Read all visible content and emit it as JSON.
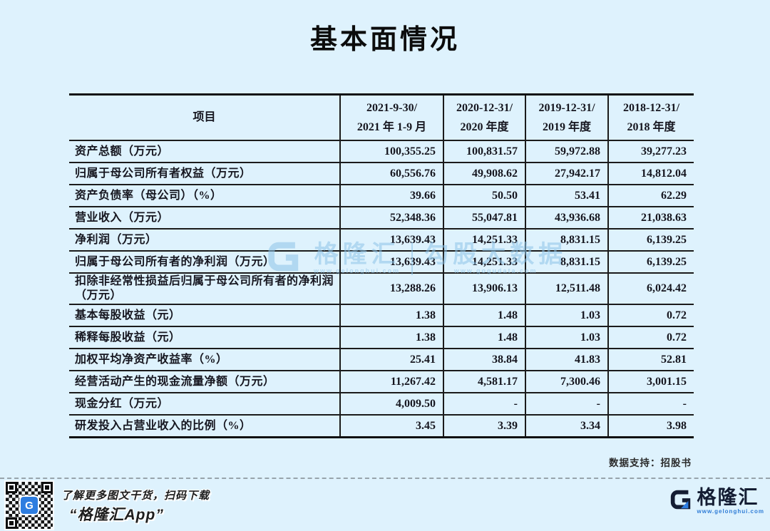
{
  "title": "基本面情况",
  "table": {
    "header": {
      "item_label": "项目",
      "periods": [
        {
          "line1": "2021-9-30/",
          "line2": "2021 年 1-9 月"
        },
        {
          "line1": "2020-12-31/",
          "line2": "2020 年度"
        },
        {
          "line1": "2019-12-31/",
          "line2": "2019 年度"
        },
        {
          "line1": "2018-12-31/",
          "line2": "2018 年度"
        }
      ]
    },
    "rows": [
      {
        "label": "资产总额（万元）",
        "values": [
          "100,355.25",
          "100,831.57",
          "59,972.88",
          "39,277.23"
        ]
      },
      {
        "label": "归属于母公司所有者权益（万元）",
        "values": [
          "60,556.76",
          "49,908.62",
          "27,942.17",
          "14,812.04"
        ]
      },
      {
        "label": "资产负债率（母公司）（%）",
        "values": [
          "39.66",
          "50.50",
          "53.41",
          "62.29"
        ]
      },
      {
        "label": "营业收入（万元）",
        "values": [
          "52,348.36",
          "55,047.81",
          "43,936.68",
          "21,038.63"
        ]
      },
      {
        "label": "净利润（万元）",
        "values": [
          "13,639.43",
          "14,251.33",
          "8,831.15",
          "6,139.25"
        ]
      },
      {
        "label": "归属于母公司所有者的净利润（万元）",
        "values": [
          "13,639.43",
          "14,251.33",
          "8,831.15",
          "6,139.25"
        ]
      },
      {
        "label": "扣除非经常性损益后归属于母公司所有者的净利润（万元）",
        "values": [
          "13,288.26",
          "13,906.13",
          "12,511.48",
          "6,024.42"
        ]
      },
      {
        "label": "基本每股收益（元）",
        "values": [
          "1.38",
          "1.48",
          "1.03",
          "0.72"
        ]
      },
      {
        "label": "稀释每股收益（元）",
        "values": [
          "1.38",
          "1.48",
          "1.03",
          "0.72"
        ]
      },
      {
        "label": "加权平均净资产收益率（%）",
        "values": [
          "25.41",
          "38.84",
          "41.83",
          "52.81"
        ]
      },
      {
        "label": "经营活动产生的现金流量净额（万元）",
        "values": [
          "11,267.42",
          "4,581.17",
          "7,300.46",
          "3,001.15"
        ]
      },
      {
        "label": "现金分红（万元）",
        "values": [
          "4,009.50",
          "-",
          "-",
          "-"
        ]
      },
      {
        "label": "研发投入占营业收入的比例（%）",
        "values": [
          "3.45",
          "3.39",
          "3.34",
          "3.98"
        ]
      }
    ]
  },
  "watermark": {
    "brand": "格隆汇",
    "brand_url": "www.gelonghui.com",
    "product": "勾股大数据",
    "product_url": "www.gogudata.com"
  },
  "source_note": "数据支持：招股书",
  "footer": {
    "line1": "了解更多图文干货，扫码下载",
    "line2": "“格隆汇App”",
    "logo_text": "格隆汇",
    "logo_url": "www.gelonghui.com",
    "qr_badge_letter": "G"
  },
  "colors": {
    "background": "#def2fd",
    "table_border": "#1b1b1b",
    "text": "#16161f",
    "watermark_blue": "#8ec4e8",
    "brand_navy": "#141d33",
    "accent_blue": "#2e7de0"
  }
}
